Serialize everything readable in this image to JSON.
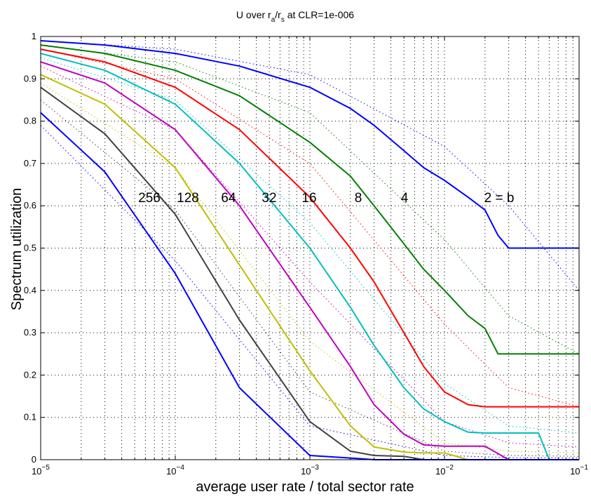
{
  "chart_data": {
    "type": "line",
    "title": "U over r_a/r_s at CLR=1e-006",
    "title_parts": {
      "main": "U over r",
      "sub_a": "a",
      "slash": "/r",
      "sub_s": "s",
      "tail": " at CLR=1e-006"
    },
    "xlabel": "average user rate / total sector rate",
    "ylabel": "Spectrum utilization",
    "xscale": "log",
    "xlim": [
      1e-05,
      0.1
    ],
    "ylim": [
      0,
      1
    ],
    "grid": true,
    "x_ticks": [
      {
        "value": 1e-05,
        "base": "10",
        "exp": "−5"
      },
      {
        "value": 0.0001,
        "base": "10",
        "exp": "−4"
      },
      {
        "value": 0.001,
        "base": "10",
        "exp": "−3"
      },
      {
        "value": 0.01,
        "base": "10",
        "exp": "−2"
      },
      {
        "value": 0.1,
        "base": "10",
        "exp": "−1"
      }
    ],
    "y_ticks": [
      "0",
      "0.1",
      "0.2",
      "0.3",
      "0.4",
      "0.5",
      "0.6",
      "0.7",
      "0.8",
      "0.9",
      "1"
    ],
    "annotations": [
      "256",
      "128",
      "64",
      "32",
      "16",
      "8",
      "4",
      "2 = b"
    ],
    "series": [
      {
        "label": "2 = b",
        "color": "#0000ff",
        "style": "solid",
        "x": [
          1e-05,
          3e-05,
          0.0001,
          0.0003,
          0.001,
          0.002,
          0.003,
          0.005,
          0.007,
          0.01,
          0.015,
          0.02,
          0.025,
          0.03,
          0.1
        ],
        "y": [
          0.99,
          0.98,
          0.96,
          0.93,
          0.88,
          0.83,
          0.79,
          0.73,
          0.69,
          0.66,
          0.62,
          0.59,
          0.53,
          0.5,
          0.5
        ]
      },
      {
        "label": "4",
        "color": "#008000",
        "style": "solid",
        "x": [
          1e-05,
          3e-05,
          0.0001,
          0.0003,
          0.001,
          0.002,
          0.003,
          0.005,
          0.007,
          0.01,
          0.015,
          0.02,
          0.025,
          0.03,
          0.1
        ],
        "y": [
          0.98,
          0.96,
          0.92,
          0.86,
          0.75,
          0.67,
          0.6,
          0.51,
          0.45,
          0.4,
          0.34,
          0.31,
          0.25,
          0.25,
          0.25
        ]
      },
      {
        "label": "8",
        "color": "#ff0000",
        "style": "solid",
        "x": [
          1e-05,
          3e-05,
          0.0001,
          0.0003,
          0.001,
          0.002,
          0.003,
          0.005,
          0.007,
          0.01,
          0.015,
          0.02,
          0.1
        ],
        "y": [
          0.97,
          0.94,
          0.88,
          0.78,
          0.62,
          0.5,
          0.42,
          0.3,
          0.22,
          0.16,
          0.13,
          0.125,
          0.125
        ]
      },
      {
        "label": "16",
        "color": "#00bfbf",
        "style": "solid",
        "x": [
          1e-05,
          3e-05,
          0.0001,
          0.0003,
          0.001,
          0.002,
          0.003,
          0.005,
          0.007,
          0.01,
          0.015,
          0.02,
          0.03,
          0.05,
          0.06,
          0.1
        ],
        "y": [
          0.96,
          0.92,
          0.84,
          0.7,
          0.5,
          0.36,
          0.27,
          0.17,
          0.12,
          0.09,
          0.065,
          0.063,
          0.063,
          0.063,
          0.0,
          0.0
        ]
      },
      {
        "label": "32",
        "color": "#bf00bf",
        "style": "solid",
        "x": [
          1e-05,
          3e-05,
          0.0001,
          0.0003,
          0.001,
          0.002,
          0.003,
          0.005,
          0.007,
          0.01,
          0.02,
          0.03,
          0.1
        ],
        "y": [
          0.94,
          0.89,
          0.78,
          0.6,
          0.36,
          0.22,
          0.13,
          0.06,
          0.035,
          0.032,
          0.032,
          0.0,
          0.0
        ]
      },
      {
        "label": "64",
        "color": "#bfbf00",
        "style": "solid",
        "x": [
          1e-05,
          3e-05,
          0.0001,
          0.0003,
          0.001,
          0.002,
          0.003,
          0.005,
          0.007,
          0.01,
          0.015,
          0.1
        ],
        "y": [
          0.91,
          0.84,
          0.69,
          0.46,
          0.21,
          0.08,
          0.03,
          0.018,
          0.016,
          0.016,
          0.0,
          0.0
        ]
      },
      {
        "label": "128",
        "color": "#404040",
        "style": "solid",
        "x": [
          1e-05,
          3e-05,
          0.0001,
          0.0003,
          0.001,
          0.002,
          0.003,
          0.005,
          0.007,
          0.1
        ],
        "y": [
          0.88,
          0.77,
          0.58,
          0.33,
          0.09,
          0.02,
          0.01,
          0.008,
          0.0,
          0.0
        ]
      },
      {
        "label": "256",
        "color": "#0000ff",
        "style": "solid",
        "x": [
          1e-05,
          3e-05,
          0.0001,
          0.0003,
          0.001,
          0.002,
          0.003,
          0.1
        ],
        "y": [
          0.82,
          0.68,
          0.44,
          0.17,
          0.01,
          0.004,
          0.0,
          0.0
        ]
      },
      {
        "color": "#0000ff",
        "style": "dotted",
        "x": [
          1e-05,
          0.0001,
          0.001,
          0.01,
          0.03,
          0.1
        ],
        "y": [
          0.99,
          0.97,
          0.91,
          0.74,
          0.6,
          0.4
        ]
      },
      {
        "color": "#008000",
        "style": "dotted",
        "x": [
          1e-05,
          0.0001,
          0.001,
          0.01,
          0.03,
          0.1
        ],
        "y": [
          0.98,
          0.94,
          0.82,
          0.52,
          0.34,
          0.25
        ]
      },
      {
        "color": "#ff0000",
        "style": "dotted",
        "x": [
          1e-05,
          0.0001,
          0.001,
          0.01,
          0.03,
          0.1
        ],
        "y": [
          0.97,
          0.9,
          0.7,
          0.32,
          0.17,
          0.125
        ]
      },
      {
        "color": "#00bfbf",
        "style": "dotted",
        "x": [
          1e-05,
          0.0001,
          0.001,
          0.01,
          0.03,
          0.1
        ],
        "y": [
          0.95,
          0.85,
          0.56,
          0.18,
          0.08,
          0.063
        ]
      },
      {
        "color": "#bf00bf",
        "style": "dotted",
        "x": [
          1e-05,
          0.0001,
          0.001,
          0.01,
          0.03,
          0.1
        ],
        "y": [
          0.93,
          0.78,
          0.42,
          0.09,
          0.04,
          0.03
        ]
      },
      {
        "color": "#bfbf00",
        "style": "dotted",
        "x": [
          1e-05,
          0.0001,
          0.001,
          0.01,
          0.03,
          0.1
        ],
        "y": [
          0.89,
          0.69,
          0.28,
          0.04,
          0.02,
          0.016
        ]
      },
      {
        "color": "#404040",
        "style": "dotted",
        "x": [
          1e-05,
          0.0001,
          0.001,
          0.01,
          0.03,
          0.1
        ],
        "y": [
          0.85,
          0.59,
          0.16,
          0.02,
          0.01,
          0.008
        ]
      },
      {
        "color": "#0000ff",
        "style": "dotted",
        "x": [
          1e-05,
          0.0001,
          0.001,
          0.01,
          0.03,
          0.1
        ],
        "y": [
          0.79,
          0.47,
          0.08,
          0.01,
          0.005,
          0.004
        ]
      }
    ]
  }
}
